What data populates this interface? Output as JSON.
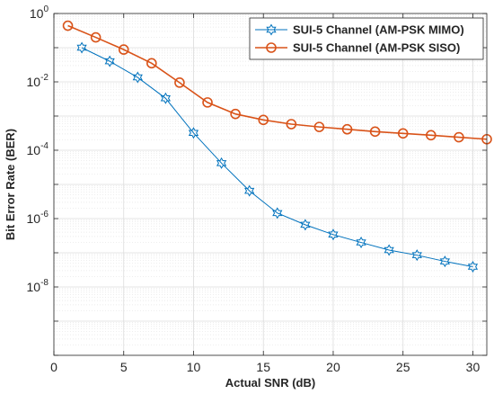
{
  "chart_data": {
    "type": "line",
    "title": "",
    "xlabel": "Actual SNR (dB)",
    "ylabel": "Bit Error Rate (BER)",
    "xlim": [
      0,
      31
    ],
    "ylim": [
      1e-10,
      1
    ],
    "yscale": "log",
    "grid": true,
    "minor_grid": true,
    "legend_position": "top-right",
    "xticks": [
      0,
      5,
      10,
      15,
      20,
      25,
      30
    ],
    "yticks": [
      {
        "value": 1,
        "mantissa": "10",
        "exponent": "0"
      },
      {
        "value": 0.01,
        "mantissa": "10",
        "exponent": "-2"
      },
      {
        "value": 0.0001,
        "mantissa": "10",
        "exponent": "-4"
      },
      {
        "value": 1e-06,
        "mantissa": "10",
        "exponent": "-6"
      },
      {
        "value": 1e-08,
        "mantissa": "10",
        "exponent": "-8"
      }
    ],
    "series": [
      {
        "name": "SUI-5 Channel (AM-PSK MIMO)",
        "color": "#0072BD",
        "marker": "hexagram",
        "x": [
          2,
          4,
          6,
          8,
          10,
          12,
          14,
          16,
          18,
          20,
          22,
          24,
          26,
          28,
          30
        ],
        "y": [
          0.1,
          0.04,
          0.0135,
          0.0033,
          0.00032,
          4.2e-05,
          6.5e-06,
          1.45e-06,
          6.6e-07,
          3.4e-07,
          2e-07,
          1.2e-07,
          8.5e-08,
          5.6e-08,
          3.9e-08
        ]
      },
      {
        "name": "SUI-5 Channel (AM-PSK SISO)",
        "color": "#D95319",
        "marker": "circle",
        "x": [
          1,
          3,
          5,
          7,
          9,
          11,
          13,
          15,
          17,
          19,
          21,
          23,
          25,
          27,
          29,
          31
        ],
        "y": [
          0.44,
          0.2,
          0.088,
          0.035,
          0.0095,
          0.0025,
          0.00115,
          0.00077,
          0.00058,
          0.00048,
          0.00041,
          0.00035,
          0.00031,
          0.000275,
          0.00024,
          0.00021
        ]
      }
    ]
  }
}
